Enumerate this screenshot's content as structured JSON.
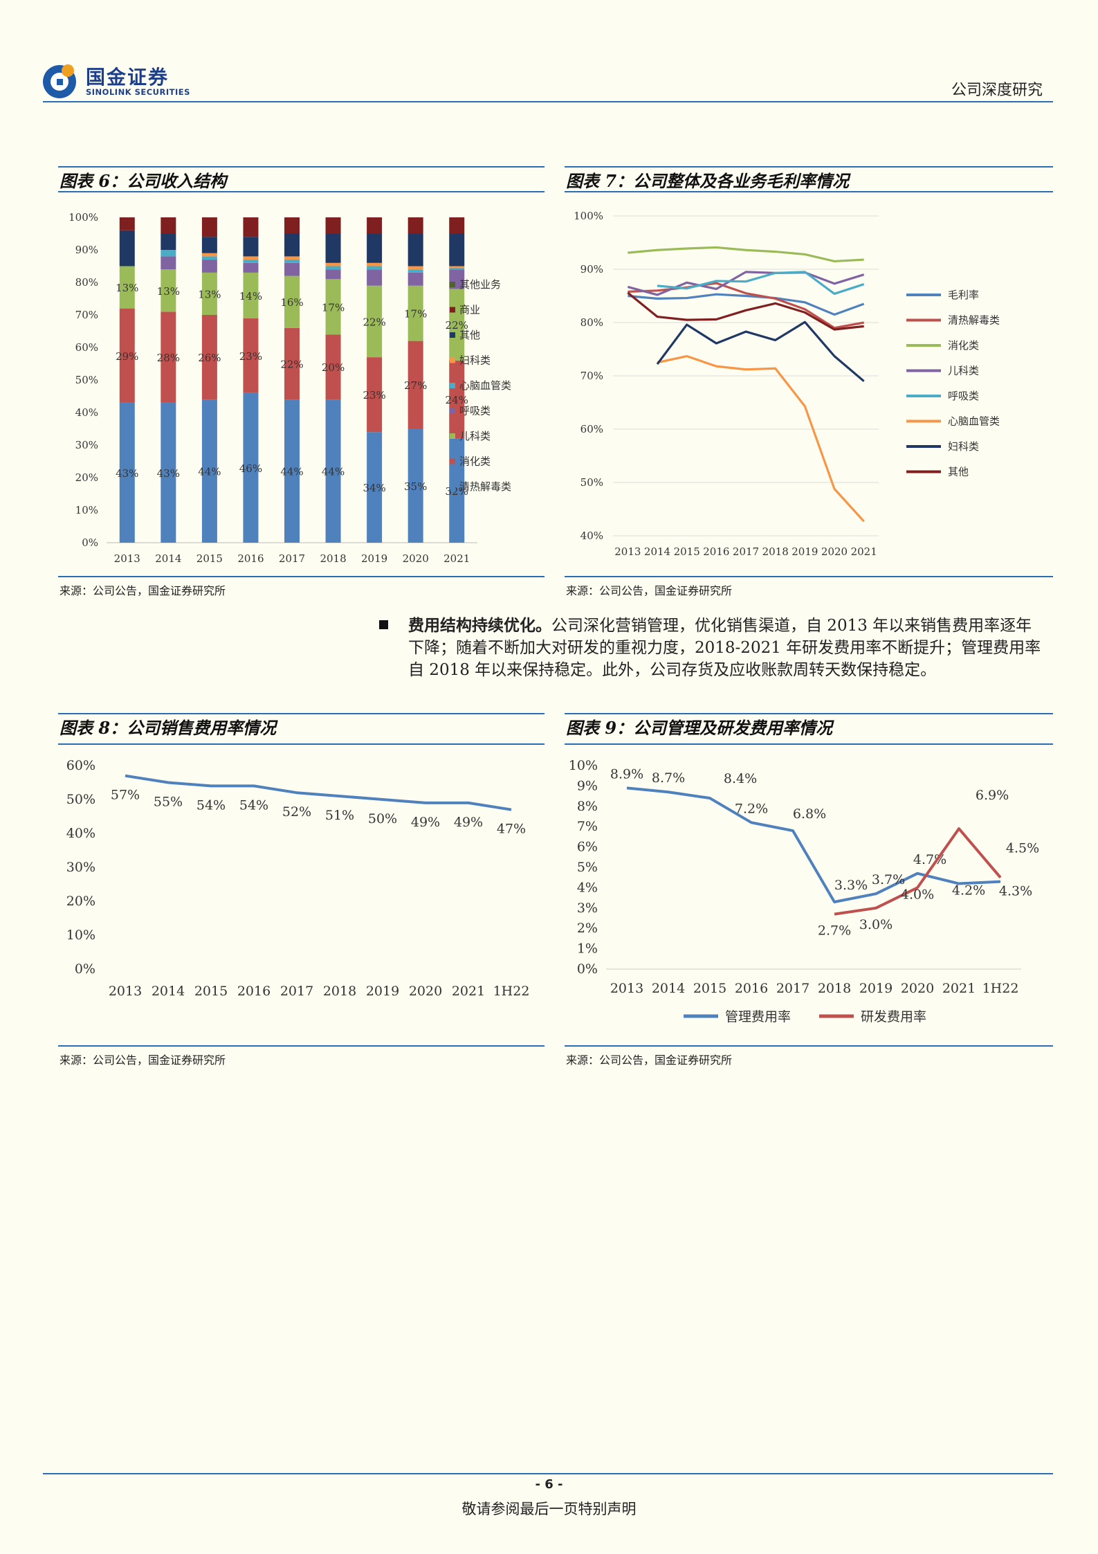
{
  "header": {
    "logo_cn": "国金证券",
    "logo_en": "SINOLINK SECURITIES",
    "report_type": "公司深度研究"
  },
  "figures": {
    "fig6": {
      "title": "图表 6：公司收入结构",
      "source": "来源：公司公告，国金证券研究所"
    },
    "fig7": {
      "title": "图表 7：公司整体及各业务毛利率情况",
      "source": "来源：公司公告，国金证券研究所"
    },
    "fig8": {
      "title": "图表 8：公司销售费用率情况",
      "source": "来源：公司公告，国金证券研究所"
    },
    "fig9": {
      "title": "图表 9：公司管理及研发费用率情况",
      "source": "来源：公司公告，国金证券研究所"
    }
  },
  "body": {
    "para_bold": "费用结构持续优化。",
    "para_text": "公司深化营销管理，优化销售渠道，自 2013 年以来销售费用率逐年下降；随着不断加大对研发的重视力度，2018-2021 年研发费用率不断提升；管理费用率自 2018 年以来保持稳定。此外，公司存货及应收账款周转天数保持稳定。"
  },
  "footer": {
    "page": "- 6 -",
    "note": "敬请参阅最后一页特别声明"
  },
  "chart_data": [
    {
      "id": "fig6",
      "type": "bar",
      "stacked": true,
      "percent": true,
      "categories": [
        "2013",
        "2014",
        "2015",
        "2016",
        "2017",
        "2018",
        "2019",
        "2020",
        "2021"
      ],
      "ylim": [
        0,
        100
      ],
      "yticks": [
        "0%",
        "10%",
        "20%",
        "30%",
        "40%",
        "50%",
        "60%",
        "70%",
        "80%",
        "90%",
        "100%"
      ],
      "legend_position": "right",
      "series": [
        {
          "name": "清热解毒类",
          "color": "#4f81bd",
          "values": [
            43,
            43,
            44,
            46,
            44,
            44,
            34,
            35,
            32
          ],
          "labels": [
            "43%",
            "43%",
            "44%",
            "46%",
            "44%",
            "44%",
            "34%",
            "35%",
            "32%"
          ]
        },
        {
          "name": "消化类",
          "color": "#c0504d",
          "values": [
            29,
            28,
            26,
            23,
            22,
            20,
            23,
            27,
            24
          ],
          "labels": [
            "29%",
            "28%",
            "26%",
            "23%",
            "22%",
            "20%",
            "23%",
            "27%",
            "24%"
          ]
        },
        {
          "name": "儿科类",
          "color": "#9bbb59",
          "values": [
            13,
            13,
            13,
            14,
            16,
            17,
            22,
            17,
            22
          ],
          "labels": [
            "13%",
            "13%",
            "13%",
            "14%",
            "16%",
            "17%",
            "22%",
            "17%",
            "22%"
          ]
        },
        {
          "name": "呼吸类",
          "color": "#8064a2",
          "values": [
            0,
            4,
            4,
            3,
            4,
            3,
            5,
            4,
            6
          ]
        },
        {
          "name": "心脑血管类",
          "color": "#4bacc6",
          "values": [
            0,
            2,
            1,
            1,
            1,
            1,
            1,
            1,
            0.5
          ]
        },
        {
          "name": "妇科类",
          "color": "#f79646",
          "values": [
            0,
            0,
            1,
            1,
            1,
            1,
            1,
            1,
            0.5
          ]
        },
        {
          "name": "其他",
          "color": "#1f3864",
          "values": [
            11,
            5,
            5,
            6,
            7,
            9,
            9,
            10,
            10
          ]
        },
        {
          "name": "商业",
          "color": "#7f1f1f",
          "values": [
            4,
            5,
            6,
            6,
            5,
            5,
            5,
            5,
            5
          ]
        },
        {
          "name": "其他业务",
          "color": "#4f6228",
          "values": [
            0,
            0,
            0,
            0,
            0,
            0,
            0,
            0,
            0
          ]
        }
      ]
    },
    {
      "id": "fig7",
      "type": "line",
      "x": [
        "2013",
        "2014",
        "2015",
        "2016",
        "2017",
        "2018",
        "2019",
        "2020",
        "2021"
      ],
      "ylim": [
        40,
        100
      ],
      "yticks": [
        "40%",
        "50%",
        "60%",
        "70%",
        "80%",
        "90%",
        "100%"
      ],
      "legend_position": "right",
      "series": [
        {
          "name": "毛利率",
          "color": "#4f81bd",
          "values": [
            85.0,
            84.5,
            84.6,
            85.3,
            85.0,
            84.6,
            83.8,
            81.5,
            83.5
          ]
        },
        {
          "name": "清热解毒类",
          "color": "#c0504d",
          "values": [
            85.8,
            86.0,
            86.6,
            87.4,
            85.5,
            84.5,
            82.5,
            79.0,
            80.0
          ]
        },
        {
          "name": "消化类",
          "color": "#9bbb59",
          "values": [
            93.1,
            93.6,
            93.9,
            94.1,
            93.6,
            93.3,
            92.8,
            91.5,
            91.8
          ]
        },
        {
          "name": "儿科类",
          "color": "#8064a2",
          "values": [
            86.7,
            85.2,
            87.5,
            86.3,
            89.5,
            89.3,
            89.4,
            87.3,
            89.0
          ]
        },
        {
          "name": "呼吸类",
          "color": "#4bacc6",
          "values": [
            null,
            86.9,
            86.4,
            87.8,
            87.7,
            89.3,
            89.5,
            85.4,
            87.2
          ]
        },
        {
          "name": "心脑血管类",
          "color": "#f79646",
          "values": [
            null,
            72.5,
            73.7,
            71.8,
            71.2,
            71.4,
            64.3,
            48.8,
            42.7
          ]
        },
        {
          "name": "妇科类",
          "color": "#1f3864",
          "values": [
            null,
            72.2,
            79.6,
            76.1,
            78.3,
            76.7,
            80.1,
            73.7,
            69.0
          ]
        },
        {
          "name": "其他",
          "color": "#7f1f1f",
          "values": [
            85.6,
            81.1,
            80.5,
            80.6,
            82.3,
            83.6,
            81.9,
            78.7,
            79.3
          ]
        }
      ]
    },
    {
      "id": "fig8",
      "type": "line",
      "x": [
        "2013",
        "2014",
        "2015",
        "2016",
        "2017",
        "2018",
        "2019",
        "2020",
        "2021",
        "1H22"
      ],
      "ylim": [
        0,
        60
      ],
      "yticks": [
        "0%",
        "10%",
        "20%",
        "30%",
        "40%",
        "50%",
        "60%"
      ],
      "series": [
        {
          "name": "",
          "color": "#4f81bd",
          "values": [
            57,
            55,
            54,
            54,
            52,
            51,
            50,
            49,
            49,
            47
          ],
          "labels": [
            "57%",
            "55%",
            "54%",
            "54%",
            "52%",
            "51%",
            "50%",
            "49%",
            "49%",
            "47%"
          ]
        }
      ]
    },
    {
      "id": "fig9",
      "type": "line",
      "x": [
        "2013",
        "2014",
        "2015",
        "2016",
        "2017",
        "2018",
        "2019",
        "2020",
        "2021",
        "1H22"
      ],
      "ylim": [
        0,
        10
      ],
      "yticks": [
        "0%",
        "1%",
        "2%",
        "3%",
        "4%",
        "5%",
        "6%",
        "7%",
        "8%",
        "9%",
        "10%"
      ],
      "legend_position": "bottom",
      "series": [
        {
          "name": "管理费用率",
          "color": "#4f81bd",
          "values": [
            8.9,
            8.7,
            8.4,
            7.2,
            6.8,
            3.3,
            3.7,
            4.7,
            4.2,
            4.3
          ],
          "labels": [
            "8.9%",
            "8.7%",
            "8.4%",
            "7.2%",
            "6.8%",
            "3.3%",
            "3.7%",
            "4.7%",
            "4.2%",
            "4.3%"
          ]
        },
        {
          "name": "研发费用率",
          "color": "#c0504d",
          "values": [
            null,
            null,
            null,
            null,
            null,
            2.7,
            3.0,
            4.0,
            6.9,
            4.5
          ],
          "labels": [
            "",
            "",
            "",
            "",
            "",
            "2.7%",
            "3.0%",
            "4.0%",
            "6.9%",
            "4.5%"
          ]
        }
      ]
    }
  ]
}
